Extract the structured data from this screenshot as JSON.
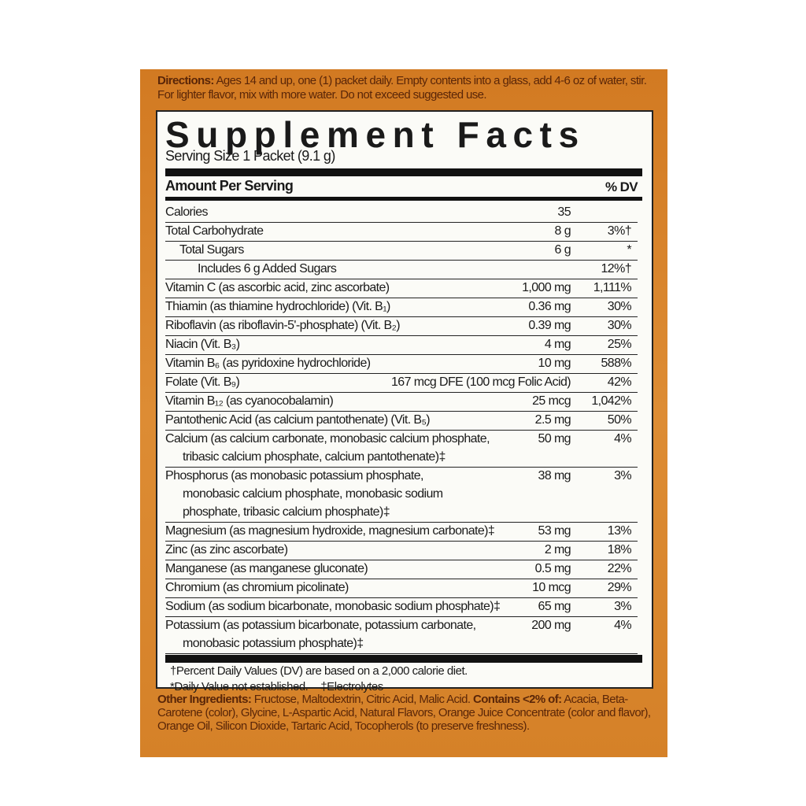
{
  "directions": {
    "label": "Directions:",
    "text": "Ages 14 and up, one (1) packet daily. Empty contents into a glass, add 4-6 oz of water, stir. For lighter flavor, mix with more water. Do not exceed suggested use."
  },
  "panel": {
    "title": "Supplement Facts",
    "serving_size": "Serving Size 1 Packet (9.1 g)",
    "amount_header": "Amount Per Serving",
    "dv_header": "% DV",
    "rows": [
      {
        "name": [
          "Calories"
        ],
        "amount": "35"
      },
      {
        "name": [
          "Total Carbohydrate"
        ],
        "amount": "8 g",
        "dv": "3%†"
      },
      {
        "name": [
          "Total Sugars"
        ],
        "amount": "6 g",
        "dv": "*",
        "indent": 1
      },
      {
        "name": [
          "Includes 6 g Added Sugars"
        ],
        "dv": "12%†",
        "indent": 2
      },
      {
        "name": [
          "Vitamin C (as ascorbic acid, zinc ascorbate)"
        ],
        "amount": "1,000 mg",
        "dv": "1,111%"
      },
      {
        "name": [
          "Thiamin (as thiamine hydrochloride) (Vit. B₁)"
        ],
        "amount": "0.36 mg",
        "dv": "30%"
      },
      {
        "name": [
          "Riboflavin (as riboflavin-5'-phosphate) (Vit. B₂)"
        ],
        "amount": "0.39 mg",
        "dv": "30%"
      },
      {
        "name": [
          "Niacin (Vit. B₃)"
        ],
        "amount": "4 mg",
        "dv": "25%"
      },
      {
        "name": [
          "Vitamin B₆ (as pyridoxine hydrochloride)"
        ],
        "amount": "10 mg",
        "dv": "588%"
      },
      {
        "name": [
          "Folate (Vit. B₉)"
        ],
        "amount": "167 mcg DFE (100 mcg Folic Acid)",
        "dv": "42%"
      },
      {
        "name": [
          "Vitamin B₁₂ (as cyanocobalamin)"
        ],
        "amount": "25 mcg",
        "dv": "1,042%"
      },
      {
        "name": [
          "Pantothenic Acid (as calcium pantothenate) (Vit. B₅)"
        ],
        "amount": "2.5 mg",
        "dv": "50%"
      },
      {
        "name": [
          "Calcium (as calcium carbonate, monobasic calcium phosphate,",
          "tribasic calcium phosphate, calcium pantothenate)‡"
        ],
        "amount": "50 mg",
        "dv": "4%"
      },
      {
        "name": [
          "Phosphorus (as monobasic potassium phosphate,",
          "monobasic calcium phosphate, monobasic sodium",
          "phosphate, tribasic calcium phosphate)‡"
        ],
        "amount": "38 mg",
        "dv": "3%"
      },
      {
        "name": [
          "Magnesium (as magnesium hydroxide, magnesium carbonate)‡"
        ],
        "amount": "53 mg",
        "dv": "13%"
      },
      {
        "name": [
          "Zinc (as zinc ascorbate)"
        ],
        "amount": "2 mg",
        "dv": "18%"
      },
      {
        "name": [
          "Manganese (as manganese gluconate)"
        ],
        "amount": "0.5 mg",
        "dv": "22%"
      },
      {
        "name": [
          "Chromium (as chromium picolinate)"
        ],
        "amount": "10 mcg",
        "dv": "29%"
      },
      {
        "name": [
          "Sodium (as sodium bicarbonate, monobasic sodium phosphate)‡"
        ],
        "amount": "65 mg",
        "dv": "3%"
      },
      {
        "name": [
          "Potassium (as potassium bicarbonate, potassium carbonate,",
          "monobasic potassium phosphate)‡"
        ],
        "amount": "200 mg",
        "dv": "4%"
      }
    ],
    "footnotes": [
      "†Percent Daily Values (DV) are based on a 2,000 calorie diet.",
      "*Daily Value not established.",
      "‡Electrolytes"
    ]
  },
  "ingredients": {
    "label": "Other Ingredients:",
    "text": "Fructose, Maltodextrin, Citric Acid, Malic Acid.",
    "contains_label": "Contains <2% of:",
    "contains_text": "Acacia, Beta-Carotene (color), Glycine, L-Aspartic Acid, Natural Flavors, Orange Juice Concentrate (color and flavor), Orange Oil, Silicon Dioxide, Tartaric Acid, Tocopherols (to preserve freshness)."
  }
}
